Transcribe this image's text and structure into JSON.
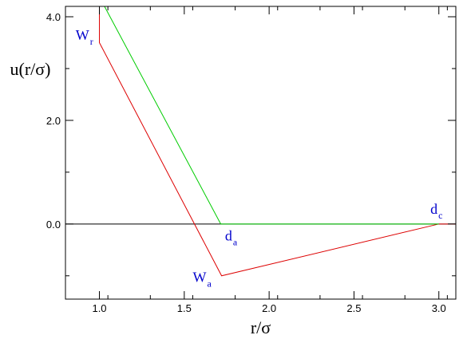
{
  "chart_data": {
    "type": "line",
    "xlabel": "r/σ",
    "ylabel": "u(r/σ)",
    "xlim": [
      0.8,
      3.1
    ],
    "ylim": [
      -1.45,
      4.2
    ],
    "x_ticks": [
      {
        "value": 1.0,
        "label": "1.0"
      },
      {
        "value": 1.5,
        "label": "1.5"
      },
      {
        "value": 2.0,
        "label": "2.0"
      },
      {
        "value": 2.5,
        "label": "2.5"
      },
      {
        "value": 3.0,
        "label": "3.0"
      }
    ],
    "y_ticks": [
      {
        "value": 0.0,
        "label": "0.0"
      },
      {
        "value": 2.0,
        "label": "2.0"
      },
      {
        "value": 4.0,
        "label": "4.0"
      }
    ],
    "x_minor_step": 0.25,
    "y_minor_step": 1.0,
    "grid": false,
    "series": [
      {
        "color": "#000000",
        "x": [
          0.8,
          3.1
        ],
        "y": [
          0.0,
          0.0
        ]
      },
      {
        "color": "#dd0000",
        "x": [
          1.0,
          1.0,
          1.72,
          3.0,
          3.1
        ],
        "y": [
          4.2,
          3.5,
          -1.0,
          0.0,
          0.0
        ]
      },
      {
        "color": "#00cc00",
        "x": [
          1.03,
          1.715,
          3.0
        ],
        "y": [
          4.2,
          0.0,
          0.0
        ]
      }
    ],
    "annotations": [
      {
        "main": "W",
        "sub": "r",
        "x": 0.86,
        "y": 3.55
      },
      {
        "main": "d",
        "sub": "a",
        "x": 1.74,
        "y": -0.32
      },
      {
        "main": "W",
        "sub": "a",
        "x": 1.55,
        "y": -1.12
      },
      {
        "main": "d",
        "sub": "c",
        "x": 2.95,
        "y": 0.2
      }
    ]
  }
}
